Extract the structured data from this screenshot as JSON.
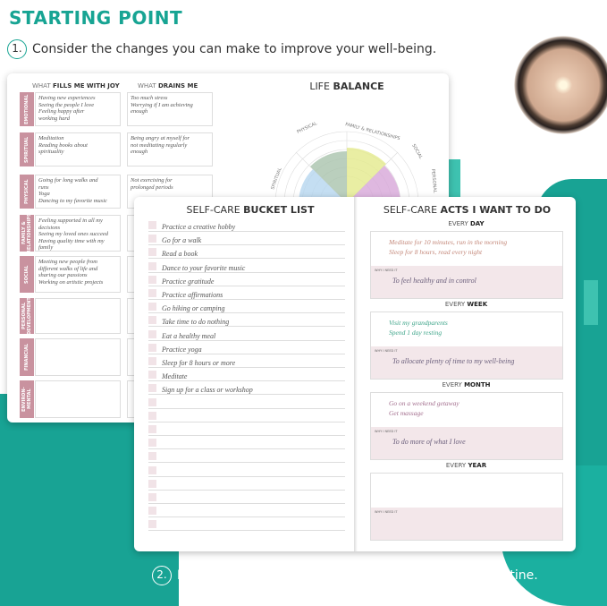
{
  "header": {
    "title": "STARTING POINT",
    "step1_num": "1.",
    "step1": "Consider the changes you can make to improve your well-being.",
    "step2_num": "2.",
    "step2": "List the self-care acts you want to include in your routine."
  },
  "colors": {
    "teal": "#18a394",
    "rose": "#c9929f",
    "pink_fill": "#f3e7ea"
  },
  "joy_page": {
    "col1_pre": "WHAT ",
    "col1_b": "FILLS ME WITH JOY",
    "col2_pre": "WHAT ",
    "col2_b": "DRAINS ME",
    "rows": [
      {
        "cat": "EMOTIONAL",
        "joy": "Having new experiences\nSeeing the people I love\nFeeling happy after\nworking hard",
        "drain": "Too much stress\nWorrying if I am achieving\nenough"
      },
      {
        "cat": "SPIRITUAL",
        "joy": "Meditation\nReading books about\nspirituality",
        "drain": "Being angry at myself for\nnot meditating regularly\nenough"
      },
      {
        "cat": "PHYSICAL",
        "joy": "Going for long walks and\nruns\nYoga\nDancing to my favorite music",
        "drain": "Not exercising for\nprolonged periods"
      },
      {
        "cat": "FAMILY & RELATIONSHIPS",
        "joy": "Feeling supported in all my\ndecisions\nSeeing my loved ones succeed\nHaving quality time with my\nfamily",
        "drain": ""
      },
      {
        "cat": "SOCIAL",
        "joy": "Meeting new people from\ndifferent walks of life and\nsharing our passions\nWorking on artistic projects",
        "drain": ""
      },
      {
        "cat": "PERSONAL DEVELOPMENT",
        "joy": "",
        "drain": ""
      },
      {
        "cat": "FINANCIAL",
        "joy": "",
        "drain": ""
      },
      {
        "cat": "ENVIRON-MENTAL",
        "joy": "",
        "drain": ""
      }
    ]
  },
  "life_balance": {
    "title_pre": "LIFE ",
    "title_b": "BALANCE",
    "labels": [
      "PHYSICAL",
      "FAMILY & RELATIONSHIPS",
      "SPIRITUAL",
      "SOCIAL",
      "PERSONAL"
    ]
  },
  "bucket_list": {
    "title_pre": "SELF-CARE ",
    "title_b": "BUCKET LIST",
    "items": [
      "Practice a creative hobby",
      "Go for a walk",
      "Read a book",
      "Dance to your favorite music",
      "Practice gratitude",
      "Practice affirmations",
      "Go hiking or camping",
      "Take time to do nothing",
      "Eat a healthy meal",
      "Practice yoga",
      "Sleep for 8 hours or more",
      "Meditate",
      "Sign up for a class or workshop",
      "",
      "",
      "",
      "",
      "",
      "",
      "",
      "",
      "",
      ""
    ]
  },
  "acts": {
    "title_pre": "SELF-CARE ",
    "title_b": "ACTS I WANT TO DO",
    "why_label": "WHY I NEED IT",
    "sections": [
      {
        "pre": "EVERY ",
        "b": "DAY",
        "text": "Meditate for 10 minutes, run in the morning\nSleep for 8 hours, read every night",
        "why": "To feel healthy and in control",
        "color": "#c4887a"
      },
      {
        "pre": "EVERY ",
        "b": "WEEK",
        "text": "Visit my grandparents\nSpend 1 day resting",
        "why": "To allocate plenty of time to my well-being",
        "color": "#3fa58a"
      },
      {
        "pre": "EVERY ",
        "b": "MONTH",
        "text": "Go on a weekend getaway\nGet massage",
        "why": "To do more of what I love",
        "color": "#a4708f"
      },
      {
        "pre": "EVERY ",
        "b": "YEAR",
        "text": "",
        "why": "",
        "color": "#555"
      }
    ]
  }
}
